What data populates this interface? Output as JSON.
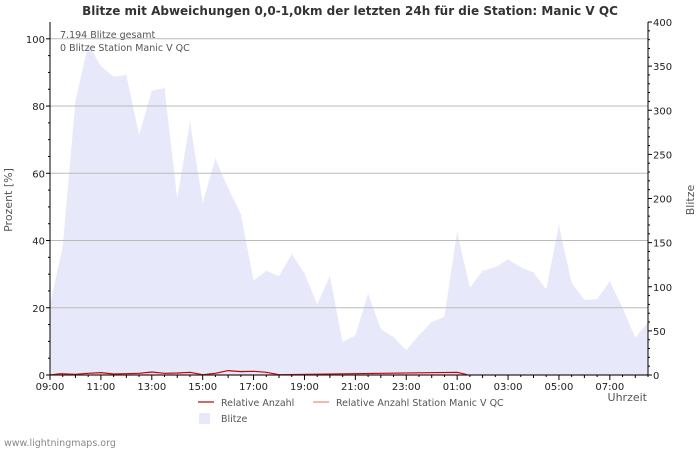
{
  "chart_data": {
    "type": "area",
    "title": "Blitze mit Abweichungen 0,0-1,0km der letzten 24h für die Station: Manic V QC",
    "ylabel_left": "Prozent   [%]",
    "ylabel_right": "Blitze",
    "xlabel": "Uhrzeit",
    "ylim_left": [
      0,
      105
    ],
    "ylim_right": [
      0,
      400
    ],
    "yticks_left": [
      0,
      20,
      40,
      60,
      80,
      100
    ],
    "yticks_right": [
      0,
      50,
      100,
      150,
      200,
      250,
      300,
      350,
      400
    ],
    "xlim_hours": [
      9,
      32.5
    ],
    "xtick_labels": [
      "09:00",
      "11:00",
      "13:00",
      "15:00",
      "17:00",
      "19:00",
      "21:00",
      "23:00",
      "01:00",
      "03:00",
      "05:00",
      "07:00"
    ],
    "annotations": [
      "7.194 Blitze gesamt",
      "0 Blitze Station Manic V QC"
    ],
    "series": [
      {
        "name": "Blitze",
        "axis": "right",
        "color": "#e8e8fb",
        "points": [
          [
            9.0,
            80
          ],
          [
            9.5,
            145
          ],
          [
            10.0,
            310
          ],
          [
            10.5,
            375
          ],
          [
            11.0,
            350
          ],
          [
            11.5,
            338
          ],
          [
            12.0,
            340
          ],
          [
            12.5,
            272
          ],
          [
            13.0,
            322
          ],
          [
            13.5,
            325
          ],
          [
            14.0,
            200
          ],
          [
            14.5,
            287
          ],
          [
            15.0,
            195
          ],
          [
            15.5,
            245
          ],
          [
            16.0,
            212
          ],
          [
            16.5,
            182
          ],
          [
            17.0,
            107
          ],
          [
            17.5,
            118
          ],
          [
            18.0,
            112
          ],
          [
            18.5,
            137
          ],
          [
            19.0,
            115
          ],
          [
            19.5,
            80
          ],
          [
            20.0,
            112
          ],
          [
            20.5,
            37
          ],
          [
            21.0,
            45
          ],
          [
            21.5,
            92
          ],
          [
            22.0,
            52
          ],
          [
            22.5,
            43
          ],
          [
            23.0,
            28
          ],
          [
            23.5,
            45
          ],
          [
            24.0,
            60
          ],
          [
            24.5,
            66
          ],
          [
            25.0,
            162
          ],
          [
            25.5,
            99
          ],
          [
            26.0,
            118
          ],
          [
            26.5,
            122
          ],
          [
            27.0,
            131
          ],
          [
            27.5,
            122
          ],
          [
            28.0,
            116
          ],
          [
            28.5,
            97
          ],
          [
            29.0,
            170
          ],
          [
            29.5,
            104
          ],
          [
            30.0,
            85
          ],
          [
            30.5,
            86
          ],
          [
            31.0,
            106
          ],
          [
            31.5,
            76
          ],
          [
            32.0,
            42
          ],
          [
            32.5,
            60
          ]
        ]
      },
      {
        "name": "Relative Anzahl",
        "axis": "left",
        "color": "#cc0000",
        "points": [
          [
            9.0,
            0
          ],
          [
            9.4,
            0.4
          ],
          [
            10.0,
            0.2
          ],
          [
            10.5,
            0.5
          ],
          [
            11.0,
            0.7
          ],
          [
            11.5,
            0.3
          ],
          [
            12.0,
            0.4
          ],
          [
            12.5,
            0.5
          ],
          [
            13.0,
            0.9
          ],
          [
            13.5,
            0.5
          ],
          [
            14.0,
            0.6
          ],
          [
            14.5,
            0.8
          ],
          [
            15.0,
            0.1
          ],
          [
            15.5,
            0.5
          ],
          [
            16.0,
            1.3
          ],
          [
            16.5,
            1.0
          ],
          [
            17.0,
            1.1
          ],
          [
            17.5,
            0.8
          ],
          [
            18.0,
            0.1
          ],
          [
            25.0,
            0.8
          ],
          [
            25.4,
            0.1
          ]
        ]
      },
      {
        "name": "Relative Anzahl Station Manic V QC",
        "axis": "left",
        "color": "#f0a090",
        "points": [
          [
            9.0,
            0
          ],
          [
            32.5,
            0
          ]
        ]
      }
    ],
    "legend": [
      {
        "label": "Relative Anzahl",
        "kind": "line",
        "color": "#cc3333"
      },
      {
        "label": "Relative Anzahl Station Manic V QC",
        "kind": "line",
        "color": "#f0a090"
      },
      {
        "label": "Blitze",
        "kind": "box",
        "color": "#e8e8fb"
      }
    ]
  },
  "footer": "www.lightningmaps.org"
}
